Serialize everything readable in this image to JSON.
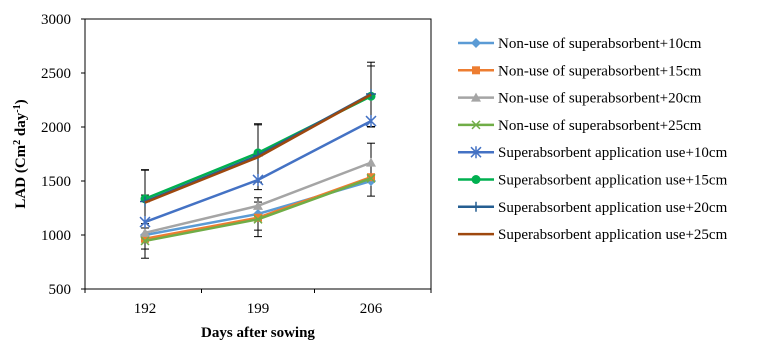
{
  "chart_data": {
    "type": "line",
    "xlabel": "Days after sowing",
    "ylabel": "LAD (Cm² day⁻¹)",
    "ylabel_parts": {
      "base": "LAD (Cm",
      "sup1": "2",
      "mid": " day",
      "sup2": "-1",
      "end": ")"
    },
    "categories": [
      "192",
      "199",
      "206"
    ],
    "ylim": [
      500,
      3000
    ],
    "yticks": [
      500,
      1000,
      1500,
      2000,
      2500,
      3000
    ],
    "ytick_labels": [
      "500",
      "1000",
      "1500",
      "2000",
      "2500",
      "3000"
    ],
    "grid": false,
    "legend_position": "right",
    "error_bars": true,
    "series": [
      {
        "name": "Non-use of superabsorbent+10cm",
        "color": "#5B9BD5",
        "marker": "diamond",
        "values": [
          1000,
          1195,
          1500
        ],
        "errors": [
          0,
          150,
          140
        ]
      },
      {
        "name": "Non-use of superabsorbent+15cm",
        "color": "#ED7D31",
        "marker": "square",
        "values": [
          965,
          1160,
          1535
        ],
        "errors": [
          0,
          0,
          0
        ]
      },
      {
        "name": "Non-use of superabsorbent+20cm",
        "color": "#A5A5A5",
        "marker": "triangle",
        "values": [
          1020,
          1270,
          1670
        ],
        "errors": [
          0,
          0,
          180
        ]
      },
      {
        "name": "Non-use of superabsorbent+25cm",
        "color": "#70AD47",
        "marker": "x",
        "values": [
          945,
          1145,
          1525
        ],
        "errors": [
          160,
          160,
          0
        ]
      },
      {
        "name": "Superabsorbent application use+10cm",
        "color": "#4472C4",
        "marker": "star",
        "values": [
          1120,
          1510,
          2055
        ],
        "errors": [
          250,
          0,
          0
        ]
      },
      {
        "name": "Superabsorbent application use+15cm",
        "color": "#00B050",
        "marker": "circle",
        "values": [
          1335,
          1760,
          2285
        ],
        "errors": [
          270,
          270,
          280
        ]
      },
      {
        "name": "Superabsorbent application use+20cm",
        "color": "#255E91",
        "marker": "plus",
        "values": [
          1310,
          1735,
          2305
        ],
        "errors": [
          0,
          0,
          0
        ]
      },
      {
        "name": "Superabsorbent application use+25cm",
        "color": "#9E480E",
        "marker": "none",
        "values": [
          1300,
          1720,
          2300
        ],
        "errors": [
          300,
          300,
          300
        ]
      }
    ]
  }
}
